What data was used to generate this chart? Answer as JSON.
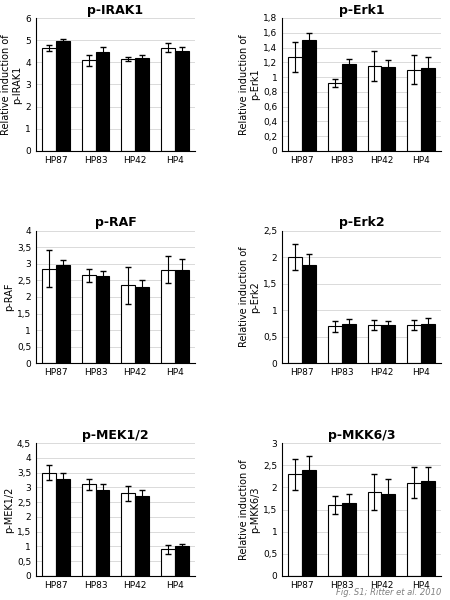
{
  "panels": [
    {
      "title": "p-IRAK1",
      "ylabel": "Relative induction of\np-IRAK1",
      "ylim": [
        0,
        6
      ],
      "yticks": [
        0,
        1,
        2,
        3,
        4,
        5,
        6
      ],
      "ytick_labels": [
        "0",
        "1",
        "2",
        "3",
        "4",
        "5",
        "6"
      ],
      "categories": [
        "HP87",
        "HP83",
        "HP42",
        "HP4"
      ],
      "white_bars": [
        4.65,
        4.1,
        4.15,
        4.65
      ],
      "black_bars": [
        4.95,
        4.45,
        4.2,
        4.5
      ],
      "white_errors": [
        0.15,
        0.25,
        0.1,
        0.2
      ],
      "black_errors": [
        0.1,
        0.25,
        0.15,
        0.2
      ]
    },
    {
      "title": "p-Erk1",
      "ylabel": "Relative induction of\np-Erk1",
      "ylim": [
        0,
        1.8
      ],
      "yticks": [
        0,
        0.2,
        0.4,
        0.6,
        0.8,
        1.0,
        1.2,
        1.4,
        1.6,
        1.8
      ],
      "ytick_labels": [
        "0",
        "0,2",
        "0,4",
        "0,6",
        "0,8",
        "1",
        "1,2",
        "1,4",
        "1,6",
        "1,8"
      ],
      "categories": [
        "HP87",
        "HP83",
        "HP42",
        "HP4"
      ],
      "white_bars": [
        1.27,
        0.92,
        1.15,
        1.1
      ],
      "black_bars": [
        1.5,
        1.18,
        1.13,
        1.12
      ],
      "white_errors": [
        0.2,
        0.05,
        0.2,
        0.2
      ],
      "black_errors": [
        0.1,
        0.06,
        0.1,
        0.15
      ]
    },
    {
      "title": "p-RAF",
      "ylabel": "Relative induction of\np-RAF",
      "ylim": [
        0,
        4
      ],
      "yticks": [
        0,
        0.5,
        1.0,
        1.5,
        2.0,
        2.5,
        3.0,
        3.5,
        4.0
      ],
      "ytick_labels": [
        "0",
        "0,5",
        "1",
        "1,5",
        "2",
        "2,5",
        "3",
        "3,5",
        "4"
      ],
      "categories": [
        "HP87",
        "HP83",
        "HP42",
        "HP4"
      ],
      "white_bars": [
        2.85,
        2.65,
        2.35,
        2.82
      ],
      "black_bars": [
        2.95,
        2.62,
        2.3,
        2.8
      ],
      "white_errors": [
        0.55,
        0.2,
        0.55,
        0.4
      ],
      "black_errors": [
        0.15,
        0.15,
        0.2,
        0.35
      ]
    },
    {
      "title": "p-Erk2",
      "ylabel": "Relative induction of\np-Erk2",
      "ylim": [
        0,
        2.5
      ],
      "yticks": [
        0,
        0.5,
        1.0,
        1.5,
        2.0,
        2.5
      ],
      "ytick_labels": [
        "0",
        "0,5",
        "1",
        "1,5",
        "2",
        "2,5"
      ],
      "categories": [
        "HP87",
        "HP83",
        "HP42",
        "HP4"
      ],
      "white_bars": [
        2.0,
        0.7,
        0.72,
        0.72
      ],
      "black_bars": [
        1.85,
        0.75,
        0.72,
        0.75
      ],
      "white_errors": [
        0.25,
        0.1,
        0.1,
        0.1
      ],
      "black_errors": [
        0.2,
        0.08,
        0.08,
        0.1
      ]
    },
    {
      "title": "p-MEK1/2",
      "ylabel": "Relative induction of\np-MEK1/2",
      "ylim": [
        0,
        4.5
      ],
      "yticks": [
        0,
        0.5,
        1.0,
        1.5,
        2.0,
        2.5,
        3.0,
        3.5,
        4.0,
        4.5
      ],
      "ytick_labels": [
        "0",
        "0,5",
        "1",
        "1,5",
        "2",
        "2,5",
        "3",
        "3,5",
        "4",
        "4,5"
      ],
      "categories": [
        "HP87",
        "HP83",
        "HP42",
        "HP4"
      ],
      "white_bars": [
        3.5,
        3.1,
        2.8,
        0.9
      ],
      "black_bars": [
        3.3,
        2.9,
        2.7,
        1.0
      ],
      "white_errors": [
        0.25,
        0.2,
        0.25,
        0.15
      ],
      "black_errors": [
        0.2,
        0.2,
        0.2,
        0.1
      ]
    },
    {
      "title": "p-MKK6/3",
      "ylabel": "Relative induction of\np-MKK6/3",
      "ylim": [
        0,
        3
      ],
      "yticks": [
        0,
        0.5,
        1.0,
        1.5,
        2.0,
        2.5,
        3.0
      ],
      "ytick_labels": [
        "0",
        "0,5",
        "1",
        "1,5",
        "2",
        "2,5",
        "3"
      ],
      "categories": [
        "HP87",
        "HP83",
        "HP42",
        "HP4"
      ],
      "white_bars": [
        2.3,
        1.6,
        1.9,
        2.1
      ],
      "black_bars": [
        2.4,
        1.65,
        1.85,
        2.15
      ],
      "white_errors": [
        0.35,
        0.2,
        0.4,
        0.35
      ],
      "black_errors": [
        0.3,
        0.2,
        0.35,
        0.3
      ]
    }
  ],
  "caption": "Fig. S1; Ritter et al. 2010",
  "white_color": "white",
  "black_color": "black",
  "edge_color": "black",
  "bar_width": 0.35,
  "grid_color": "#cccccc",
  "title_fontsize": 9,
  "label_fontsize": 7,
  "tick_fontsize": 6.5,
  "caption_fontsize": 6
}
